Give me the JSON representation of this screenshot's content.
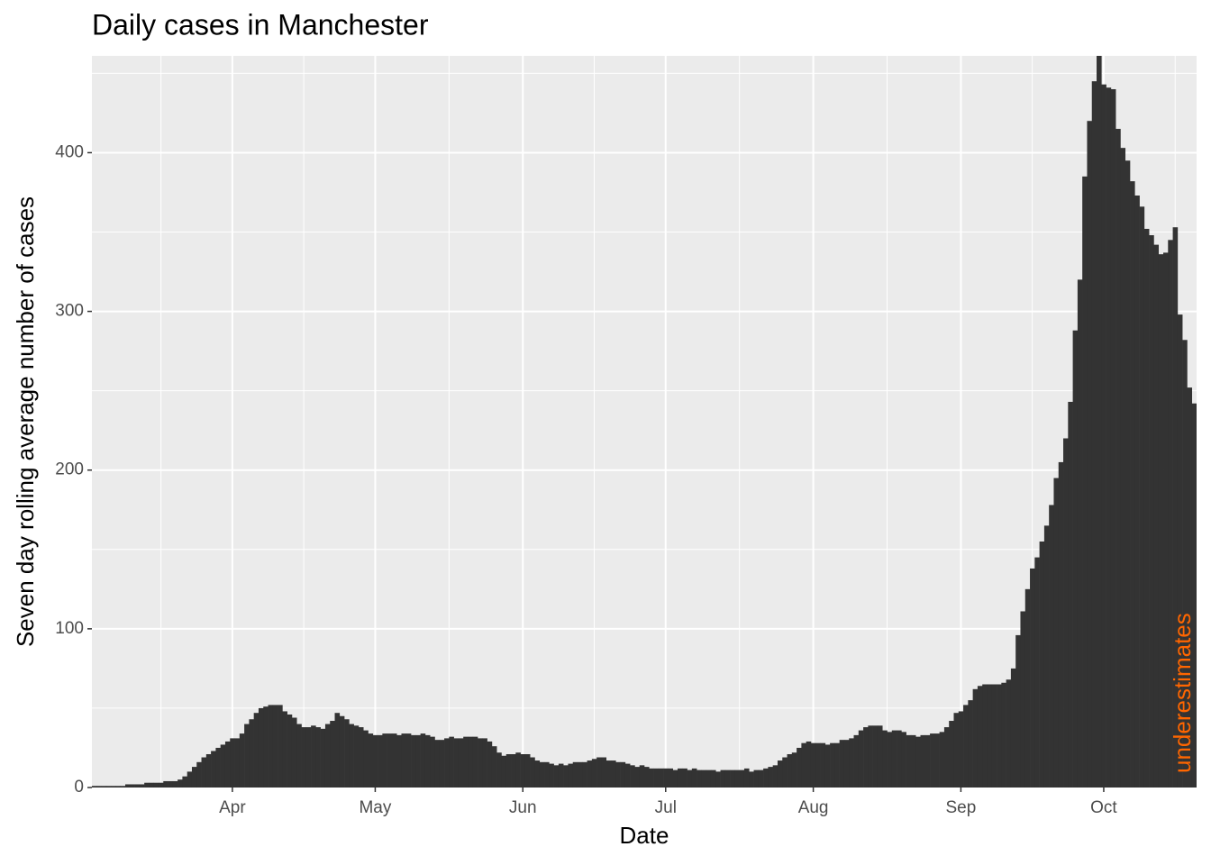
{
  "chart_data": {
    "type": "bar",
    "title": "Daily cases in Manchester",
    "x_label": "Date",
    "y_label": "Seven day rolling average number of cases",
    "annotation": "underestimates",
    "annotation_color": "#ff6600",
    "color": "#333333",
    "grid": true,
    "categories": [
      null,
      null,
      null,
      null,
      null,
      null,
      null,
      null,
      null,
      null,
      null,
      null,
      null,
      null,
      null,
      null,
      null,
      null,
      null,
      null,
      null,
      null,
      null,
      null,
      null,
      null,
      null,
      null,
      null,
      "Apr",
      null,
      null,
      null,
      null,
      null,
      null,
      null,
      null,
      null,
      null,
      null,
      null,
      null,
      null,
      null,
      null,
      null,
      null,
      null,
      null,
      null,
      null,
      null,
      null,
      null,
      null,
      null,
      null,
      null,
      "May",
      null,
      null,
      null,
      null,
      null,
      null,
      null,
      null,
      null,
      null,
      null,
      null,
      null,
      null,
      null,
      null,
      null,
      null,
      null,
      null,
      null,
      null,
      null,
      null,
      null,
      null,
      null,
      null,
      null,
      null,
      "Jun",
      null,
      null,
      null,
      null,
      null,
      null,
      null,
      null,
      null,
      null,
      null,
      null,
      null,
      null,
      null,
      null,
      null,
      null,
      null,
      null,
      null,
      null,
      null,
      null,
      null,
      null,
      null,
      null,
      null,
      "Jul",
      null,
      null,
      null,
      null,
      null,
      null,
      null,
      null,
      null,
      null,
      null,
      null,
      null,
      null,
      null,
      null,
      null,
      null,
      null,
      null,
      null,
      null,
      null,
      null,
      null,
      null,
      null,
      null,
      null,
      null,
      "Aug",
      null,
      null,
      null,
      null,
      null,
      null,
      null,
      null,
      null,
      null,
      null,
      null,
      null,
      null,
      null,
      null,
      null,
      null,
      null,
      null,
      null,
      null,
      null,
      null,
      null,
      null,
      null,
      null,
      null,
      null,
      "Sep",
      null,
      null,
      null,
      null,
      null,
      null,
      null,
      null,
      null,
      null,
      null,
      null,
      null,
      null,
      null,
      null,
      null,
      null,
      null,
      null,
      null,
      null,
      null,
      null,
      null,
      null,
      null,
      null,
      null,
      "Oct",
      null,
      null,
      null,
      null,
      null,
      null,
      null,
      null,
      null,
      null,
      null,
      null,
      null,
      null,
      null,
      null,
      null,
      null,
      null
    ],
    "values": [
      1,
      1,
      1,
      1,
      1,
      1,
      1,
      2,
      2,
      2,
      2,
      3,
      3,
      3,
      3,
      4,
      4,
      4,
      5,
      7,
      10,
      13,
      16,
      19,
      21,
      23,
      25,
      27,
      29,
      31,
      31,
      34,
      40,
      43,
      47,
      50,
      51,
      52,
      52,
      52,
      48,
      46,
      44,
      40,
      38,
      38,
      39,
      38,
      37,
      40,
      42,
      47,
      45,
      43,
      40,
      39,
      38,
      36,
      34,
      33,
      33,
      34,
      34,
      34,
      33,
      34,
      34,
      33,
      33,
      34,
      33,
      32,
      30,
      30,
      31,
      32,
      31,
      31,
      32,
      32,
      32,
      31,
      31,
      29,
      26,
      22,
      20,
      21,
      21,
      22,
      21,
      21,
      19,
      17,
      16,
      16,
      15,
      14,
      15,
      14,
      15,
      16,
      16,
      16,
      17,
      18,
      19,
      19,
      17,
      17,
      16,
      16,
      15,
      14,
      13,
      14,
      13,
      12,
      12,
      12,
      12,
      12,
      11,
      12,
      12,
      11,
      12,
      11,
      11,
      11,
      11,
      10,
      11,
      11,
      11,
      11,
      11,
      12,
      10,
      11,
      11,
      12,
      13,
      14,
      17,
      19,
      21,
      22,
      25,
      28,
      29,
      28,
      28,
      28,
      27,
      28,
      28,
      30,
      30,
      31,
      33,
      36,
      38,
      39,
      39,
      39,
      36,
      35,
      36,
      36,
      35,
      33,
      33,
      32,
      33,
      33,
      34,
      34,
      35,
      38,
      42,
      47,
      48,
      52,
      55,
      62,
      64,
      65,
      65,
      65,
      65,
      66,
      68,
      75,
      96,
      111,
      125,
      138,
      145,
      155,
      165,
      178,
      195,
      205,
      220,
      243,
      288,
      320,
      385,
      420,
      445,
      463,
      443,
      441,
      440,
      415,
      403,
      395,
      382,
      373,
      366,
      352,
      348,
      342,
      336,
      337,
      345,
      353,
      298,
      282,
      252,
      242
    ],
    "ylim": [
      0,
      461
    ],
    "yticks": [
      0,
      100,
      200,
      300,
      400
    ]
  }
}
